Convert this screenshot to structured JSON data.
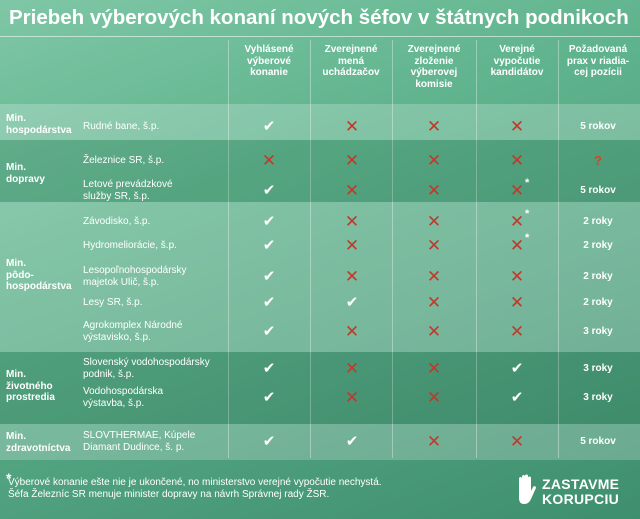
{
  "title": "Priebeh výberových konaní nových šéfov v štátnych podnikoch",
  "headers": [
    "Vyhlásené\nvýberové\nkonanie",
    "Zverejnené\nmená\nuchádzačov",
    "Zverejnené\nzloženie\nvýberovej\nkomisie",
    "Verejné\nvypočutie\nkandidátov",
    "Požadovaná\nprax v riadia-\ncej pozícii"
  ],
  "ministries": [
    "Min.\nhospodárstva",
    "Min.\ndopravy",
    "Min.\npôdo-\nhospodárstva",
    "Min.\nživotného\nprostredia",
    "Min.\nzdravotníctva"
  ],
  "rows": [
    {
      "org": "Rudné bane, š.p.",
      "marks": [
        "check",
        "cross",
        "cross",
        "cross"
      ],
      "years": "5 rokov"
    },
    {
      "org": "Železnice SR, š.p.",
      "marks": [
        "cross",
        "cross",
        "cross",
        "cross"
      ],
      "years": "?"
    },
    {
      "org": "Letové prevádzkové\nslužby SR, š.p.",
      "marks": [
        "check",
        "cross",
        "cross",
        "cross*"
      ],
      "years": "5 rokov"
    },
    {
      "org": "Závodisko, š.p.",
      "marks": [
        "check",
        "cross",
        "cross",
        "cross*"
      ],
      "years": "2 roky"
    },
    {
      "org": "Hydromeliorácie, š.p.",
      "marks": [
        "check",
        "cross",
        "cross",
        "cross*"
      ],
      "years": "2 roky"
    },
    {
      "org": "Lesopoľnohospodársky\nmajetok Ulič, š.p.",
      "marks": [
        "check",
        "cross",
        "cross",
        "cross"
      ],
      "years": "2 roky"
    },
    {
      "org": "Lesy SR, š.p.",
      "marks": [
        "check",
        "check",
        "cross",
        "cross"
      ],
      "years": "2 roky"
    },
    {
      "org": "Agrokomplex Národné\nvýstavisko, š.p.",
      "marks": [
        "check",
        "cross",
        "cross",
        "cross"
      ],
      "years": "3 roky"
    },
    {
      "org": "Slovenský vodohospodársky\npodnik, š.p.",
      "marks": [
        "check",
        "cross",
        "cross",
        "check"
      ],
      "years": "3 roky"
    },
    {
      "org": "Vodohospodárska\nvýstavba, š.p.",
      "marks": [
        "check",
        "cross",
        "cross",
        "check"
      ],
      "years": "3 roky"
    },
    {
      "org": "SLOVTHERMAE, Kúpele\nDiamant Dudince, š. p.",
      "marks": [
        "check",
        "check",
        "cross",
        "cross"
      ],
      "years": "5 rokov"
    }
  ],
  "footnote": {
    "star": "*",
    "line1": "Výberové konanie ešte nie je ukončené, no ministerstvo verejné vypočutie nechystá.",
    "line2": "Šéfa Železníc SR menuje minister dopravy na návrh Správnej rady ŽSR."
  },
  "logo": {
    "line1": "ZASTAVME",
    "line2": "KORUPCIU"
  },
  "colors": {
    "cross": "#c0392b",
    "question": "#d9431e",
    "background": "#5fb38d"
  }
}
